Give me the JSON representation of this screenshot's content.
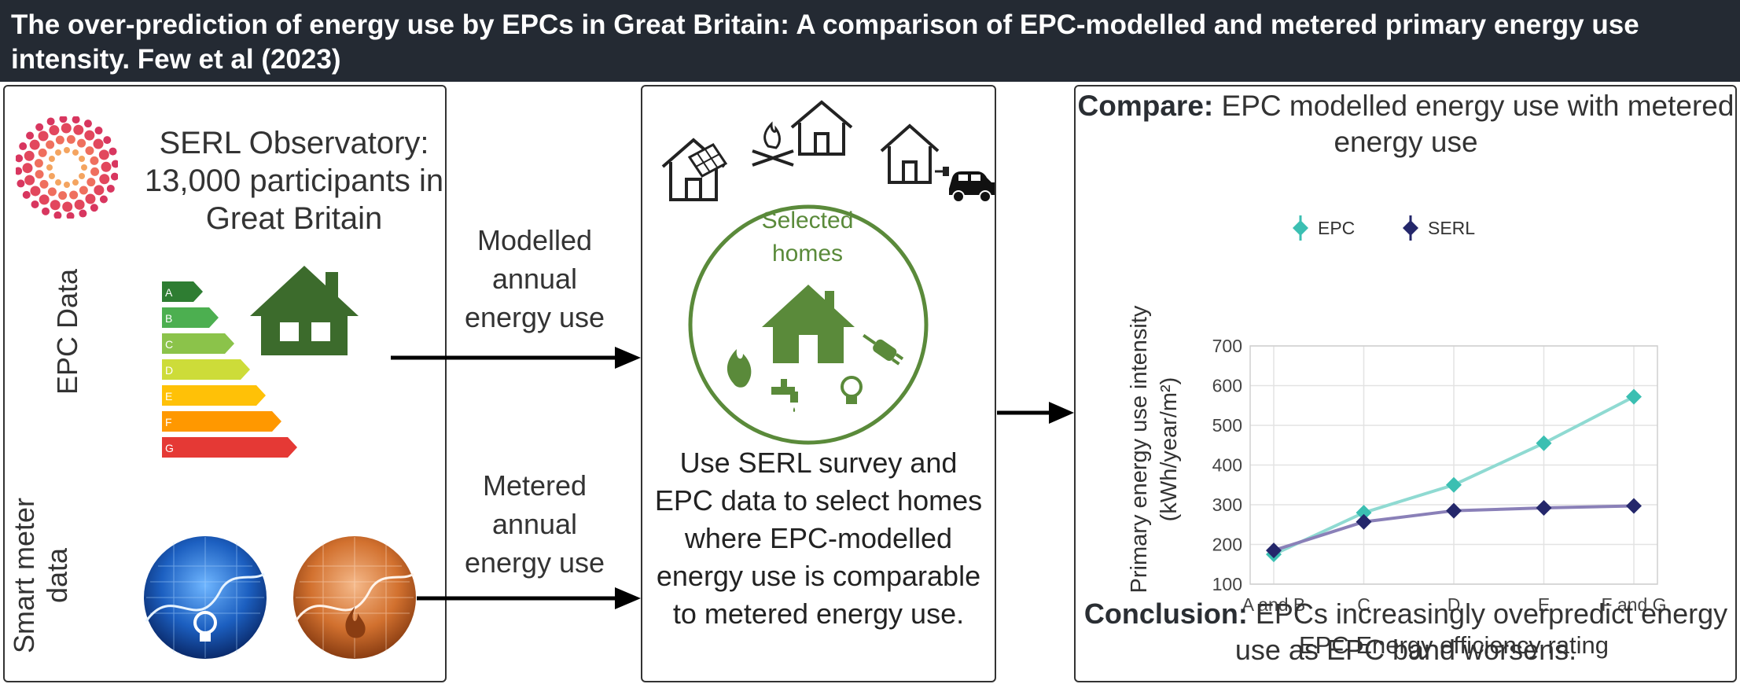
{
  "header": {
    "title": "The over-prediction of energy use by EPCs in Great Britain: A comparison of EPC-modelled and metered primary energy use intensity. Few et al (2023)"
  },
  "left_panel": {
    "serl_title": "SERL Observatory: 13,000 participants in Great Britain",
    "epc_label": "EPC Data",
    "smart_meter_label_line1": "Smart meter",
    "smart_meter_label_line2": "data",
    "epc_bands": [
      "A",
      "B",
      "C",
      "D",
      "E",
      "F",
      "G"
    ],
    "epc_band_colors": [
      "#2e7d32",
      "#4caf50",
      "#8bc34a",
      "#cddc39",
      "#ffc107",
      "#ff9800",
      "#e53935"
    ]
  },
  "arrows": {
    "modelled_label": "Modelled annual energy use",
    "metered_label": "Metered annual energy use"
  },
  "middle_panel": {
    "circle_label": "Selected homes",
    "description": "Use SERL survey and EPC data to select homes where EPC-modelled energy use is comparable to metered energy use."
  },
  "right_panel": {
    "compare_bold": "Compare:",
    "compare_text": " EPC modelled energy use with metered energy use",
    "conclusion_bold": "Conclusion:",
    "conclusion_text": " EPCs increasingly overpredict energy use as EPC band worsens."
  },
  "chart_data": {
    "type": "line",
    "categories": [
      "A and B",
      "C",
      "D",
      "E",
      "F and G"
    ],
    "series": [
      {
        "name": "EPC",
        "values": [
          175,
          280,
          350,
          455,
          572
        ],
        "color": "#3bbfb2"
      },
      {
        "name": "SERL",
        "values": [
          185,
          257,
          285,
          292,
          297
        ],
        "color": "#24276b"
      }
    ],
    "xlabel": "EPC Energy efficiency rating",
    "ylabel_line1": "Primary energy use intensity",
    "ylabel_line2": "(kWh/year/m²)",
    "ylim": [
      100,
      700
    ],
    "yticks": [
      100,
      200,
      300,
      400,
      500,
      600,
      700
    ],
    "grid": true,
    "legend": "top"
  }
}
